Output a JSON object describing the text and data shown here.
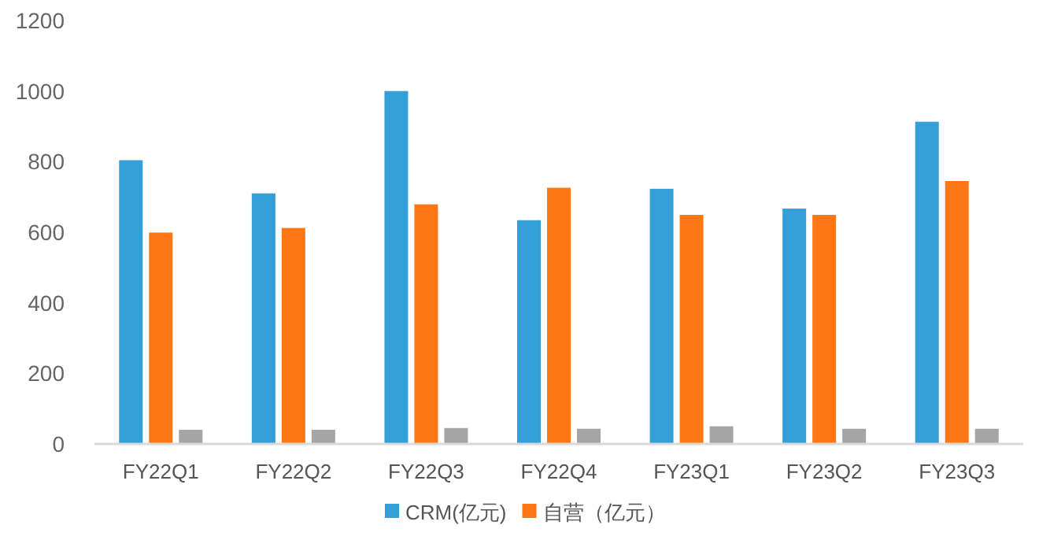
{
  "chart_data": {
    "type": "bar",
    "categories": [
      "FY22Q1",
      "FY22Q2",
      "FY22Q3",
      "FY22Q4",
      "FY23Q1",
      "FY23Q2",
      "FY23Q3"
    ],
    "series": [
      {
        "name": "CRM(亿元)",
        "color": "#359fd7",
        "values": [
          804,
          710,
          1000,
          634,
          723,
          667,
          913
        ]
      },
      {
        "name": "自营（亿元）",
        "color": "#fd7716",
        "values": [
          599,
          612,
          679,
          726,
          649,
          649,
          745
        ]
      },
      {
        "color": "#a5a5a5",
        "values": [
          40,
          40,
          45,
          43,
          50,
          43,
          43
        ]
      }
    ],
    "ylim": [
      0,
      1200
    ],
    "yticks": [
      0,
      200,
      400,
      600,
      800,
      1000,
      1200
    ],
    "legend": "bottom"
  }
}
